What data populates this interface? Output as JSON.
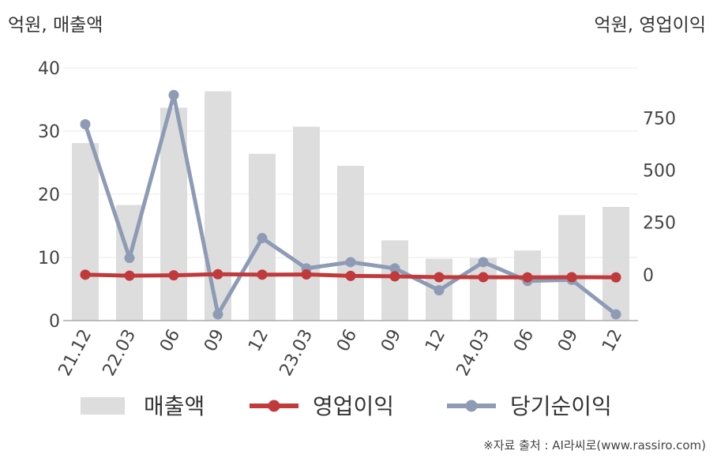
{
  "chart_data": {
    "type": "bar",
    "title": "",
    "left_unit_label": "억원, 매출액",
    "right_unit_label": "억원, 영업이익",
    "categories": [
      "21.12",
      "22.03",
      "06",
      "09",
      "12",
      "23.03",
      "06",
      "09",
      "12",
      "24.03",
      "06",
      "09",
      "12"
    ],
    "left_axis": {
      "ylim": [
        0,
        40
      ],
      "ticks": [
        "0",
        "10",
        "20",
        "30",
        "40"
      ]
    },
    "right_axis": {
      "ylim": [
        -220,
        990
      ],
      "ticks": [
        "0",
        "250",
        "500",
        "750"
      ]
    },
    "grid": true,
    "legend_position": "bottom",
    "series": [
      {
        "name": "매출액",
        "type": "bar",
        "axis": "left",
        "color": "#dddddd",
        "values": [
          28.1,
          18.3,
          33.7,
          36.3,
          26.4,
          30.7,
          24.5,
          12.7,
          9.8,
          9.9,
          11.1,
          16.7,
          18.0
        ]
      },
      {
        "name": "영업이익",
        "type": "line",
        "axis": "right",
        "color": "#c0393b",
        "values": [
          0,
          -5,
          -3,
          2,
          0,
          1,
          -6,
          -8,
          -12,
          -12,
          -13,
          -12,
          -13
        ]
      },
      {
        "name": "당기순이익",
        "type": "line",
        "axis": "right",
        "color": "#8e9bb5",
        "values": [
          720,
          80,
          860,
          -190,
          175,
          30,
          60,
          30,
          -75,
          60,
          -30,
          -25,
          -190
        ]
      }
    ],
    "source": "※자료 출처 : AI라씨로(www.rassiro.com)"
  }
}
